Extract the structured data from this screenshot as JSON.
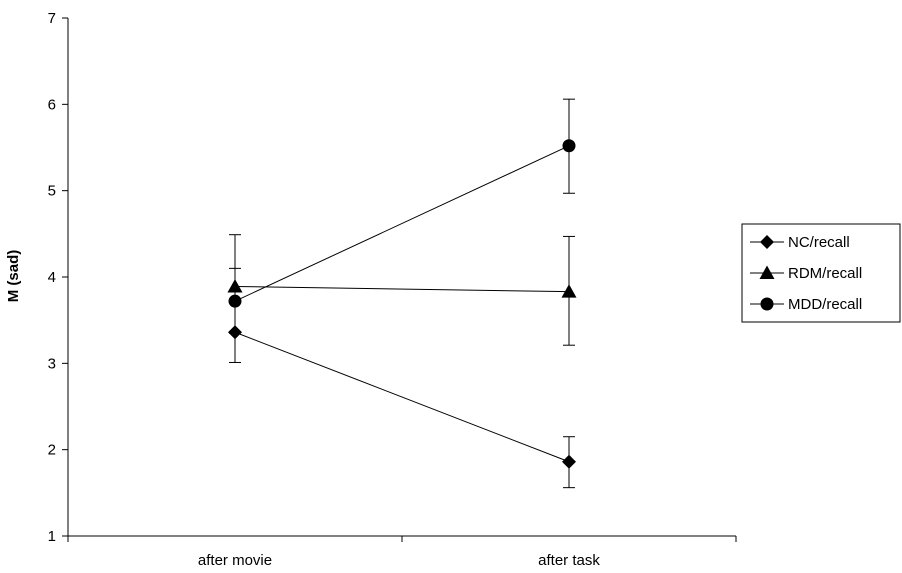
{
  "chart_data": {
    "type": "line",
    "title": "",
    "xlabel": "",
    "ylabel": "M (sad)",
    "categories": [
      "after movie",
      "after task"
    ],
    "ylim": [
      1,
      7
    ],
    "yticks": [
      1,
      2,
      3,
      4,
      5,
      6,
      7
    ],
    "grid": false,
    "legend_position": "right",
    "series": [
      {
        "name": "NC/recall",
        "marker": "diamond",
        "values": [
          3.36,
          1.86
        ],
        "error_low": [
          3.01,
          1.56
        ],
        "error_high": [
          3.71,
          2.15
        ]
      },
      {
        "name": "RDM/recall",
        "marker": "triangle",
        "values": [
          3.89,
          3.83
        ],
        "error_low": [
          3.35,
          3.21
        ],
        "error_high": [
          4.49,
          4.47
        ]
      },
      {
        "name": "MDD/recall",
        "marker": "circle",
        "values": [
          3.72,
          5.52
        ],
        "error_low": [
          3.35,
          4.97
        ],
        "error_high": [
          4.1,
          6.06
        ]
      }
    ]
  }
}
